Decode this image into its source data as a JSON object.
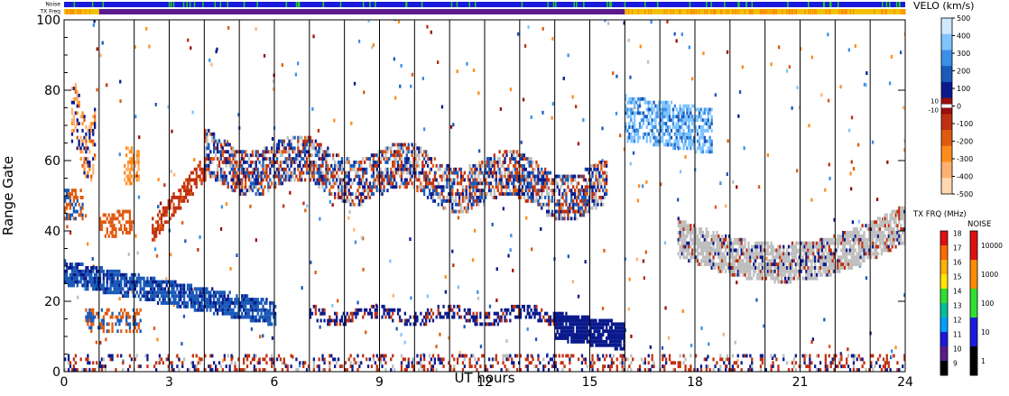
{
  "chart_data": {
    "type": "heatmap",
    "title": "",
    "xlabel": "UT hours",
    "ylabel": "Range Gate",
    "xlim": [
      0,
      24
    ],
    "ylim": [
      0,
      100
    ],
    "x_ticks": [
      "0",
      "3",
      "6",
      "9",
      "12",
      "15",
      "18",
      "21",
      "24"
    ],
    "y_ticks": [
      "0",
      "20",
      "40",
      "60",
      "80",
      "100"
    ],
    "top_strips": [
      {
        "label": "Noise",
        "dominant_color": "#1a1adc",
        "accent_color": "#22cc22"
      },
      {
        "label": "TX Freq",
        "segments": [
          {
            "start_ut": 0.0,
            "end_ut": 1.0,
            "color": "#f2c200"
          },
          {
            "start_ut": 1.0,
            "end_ut": 16.0,
            "color": "#5a1a8c"
          },
          {
            "start_ut": 16.0,
            "end_ut": 24.0,
            "color": "#f2c200"
          }
        ]
      }
    ],
    "velocity_colorbar": {
      "title": "VELO (km/s)",
      "ticks": [
        "500",
        "400",
        "300",
        "200",
        "100",
        "0",
        "-100",
        "-200",
        "-300",
        "-400",
        "-500"
      ],
      "inner_labels": [
        "10",
        "-10"
      ],
      "colors": [
        "#cfe9ff",
        "#7fc4ff",
        "#3b8fe6",
        "#1a5ab8",
        "#0a1a8c",
        "#9a0e0e",
        "#c03010",
        "#e05a10",
        "#ff8c1a",
        "#ffb070",
        "#ffd8b0"
      ],
      "ground_scatter_color": "#bebebe"
    },
    "freq_colorbar": {
      "title": "TX FRQ (MHz)",
      "ticks": [
        "18",
        "17",
        "16",
        "15",
        "14",
        "13",
        "12",
        "11",
        "10",
        "9"
      ],
      "colors": [
        "#e01010",
        "#ff6a00",
        "#ffb000",
        "#ffe600",
        "#30e030",
        "#00c0a0",
        "#00a0ff",
        "#1a1adc",
        "#5a1a8c",
        "#000000"
      ]
    },
    "noise_colorbar": {
      "title": "NOISE",
      "ticks": [
        "10000",
        "1000",
        "100",
        "10",
        "1"
      ],
      "colors": [
        "#e01010",
        "#ff8c00",
        "#30e030",
        "#1a1adc",
        "#000000"
      ]
    },
    "scan_boundaries_ut": [
      1,
      2,
      3,
      4,
      5,
      6,
      7,
      8,
      9,
      10,
      11,
      12,
      13,
      14,
      15,
      16,
      17,
      18,
      19,
      20,
      21,
      22,
      23,
      24
    ],
    "echo_regions": [
      {
        "feature": "ionospheric scatter",
        "ut": [
          0.0,
          0.8
        ],
        "gates": [
          45,
          80
        ],
        "velocity": "mixed, positive and negative"
      },
      {
        "feature": "ionospheric scatter",
        "ut": [
          1.8,
          2.1
        ],
        "gates": [
          53,
          64
        ],
        "velocity": "negative (orange)"
      },
      {
        "feature": "ionospheric scatter",
        "ut": [
          2.5,
          4.0
        ],
        "gates": [
          40,
          58
        ],
        "velocity": "-100 to -200"
      },
      {
        "feature": "ionospheric scatter",
        "ut": [
          4.0,
          15.5
        ],
        "gates": [
          44,
          67
        ],
        "velocity": "mixed, +/-100 with ground scatter"
      },
      {
        "feature": "ionospheric scatter",
        "ut": [
          0.0,
          6.0
        ],
        "gates": [
          15,
          33
        ],
        "velocity": "+100 to +200 (blue)"
      },
      {
        "feature": "ionospheric scatter",
        "ut": [
          7.0,
          16.0
        ],
        "gates": [
          8,
          19
        ],
        "velocity": "+100 (dark blue)"
      },
      {
        "feature": "ionospheric scatter",
        "ut": [
          16.0,
          18.5
        ],
        "gates": [
          62,
          82
        ],
        "velocity": "+300 to +400 (light blue)"
      },
      {
        "feature": "ground scatter",
        "ut": [
          17.5,
          24.0
        ],
        "gates": [
          26,
          45
        ],
        "velocity": "ground scatter (grey)"
      },
      {
        "feature": "near-range clutter",
        "ut": [
          0.0,
          24.0
        ],
        "gates": [
          0,
          5
        ],
        "velocity": "mixed"
      }
    ]
  }
}
